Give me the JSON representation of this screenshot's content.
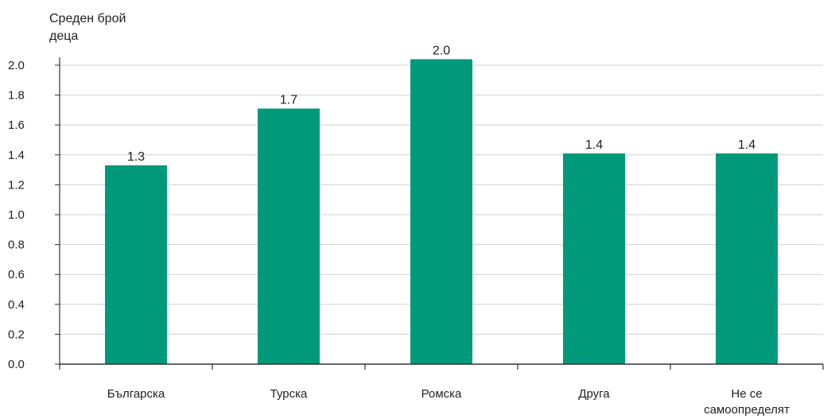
{
  "chart_data": {
    "type": "bar",
    "ylabel_lines": [
      "Среден брой",
      "деца"
    ],
    "categories": [
      [
        "Българска"
      ],
      [
        "Турска"
      ],
      [
        "Ромска"
      ],
      [
        "Друга"
      ],
      [
        "Не се",
        "самоопределят"
      ]
    ],
    "values": [
      1.33,
      1.71,
      2.04,
      1.41,
      1.41
    ],
    "data_labels": [
      "1.3",
      "1.7",
      "2.0",
      "1.4",
      "1.4"
    ],
    "yticks": [
      "0.0",
      "0.2",
      "0.4",
      "0.6",
      "0.8",
      "1.0",
      "1.2",
      "1.4",
      "1.6",
      "1.8",
      "2.0"
    ],
    "ylim": [
      0,
      2.1
    ],
    "grid": true,
    "colors": {
      "bar": "#009a7a",
      "grid": "#d0d0d0",
      "axis": "#333333"
    }
  }
}
